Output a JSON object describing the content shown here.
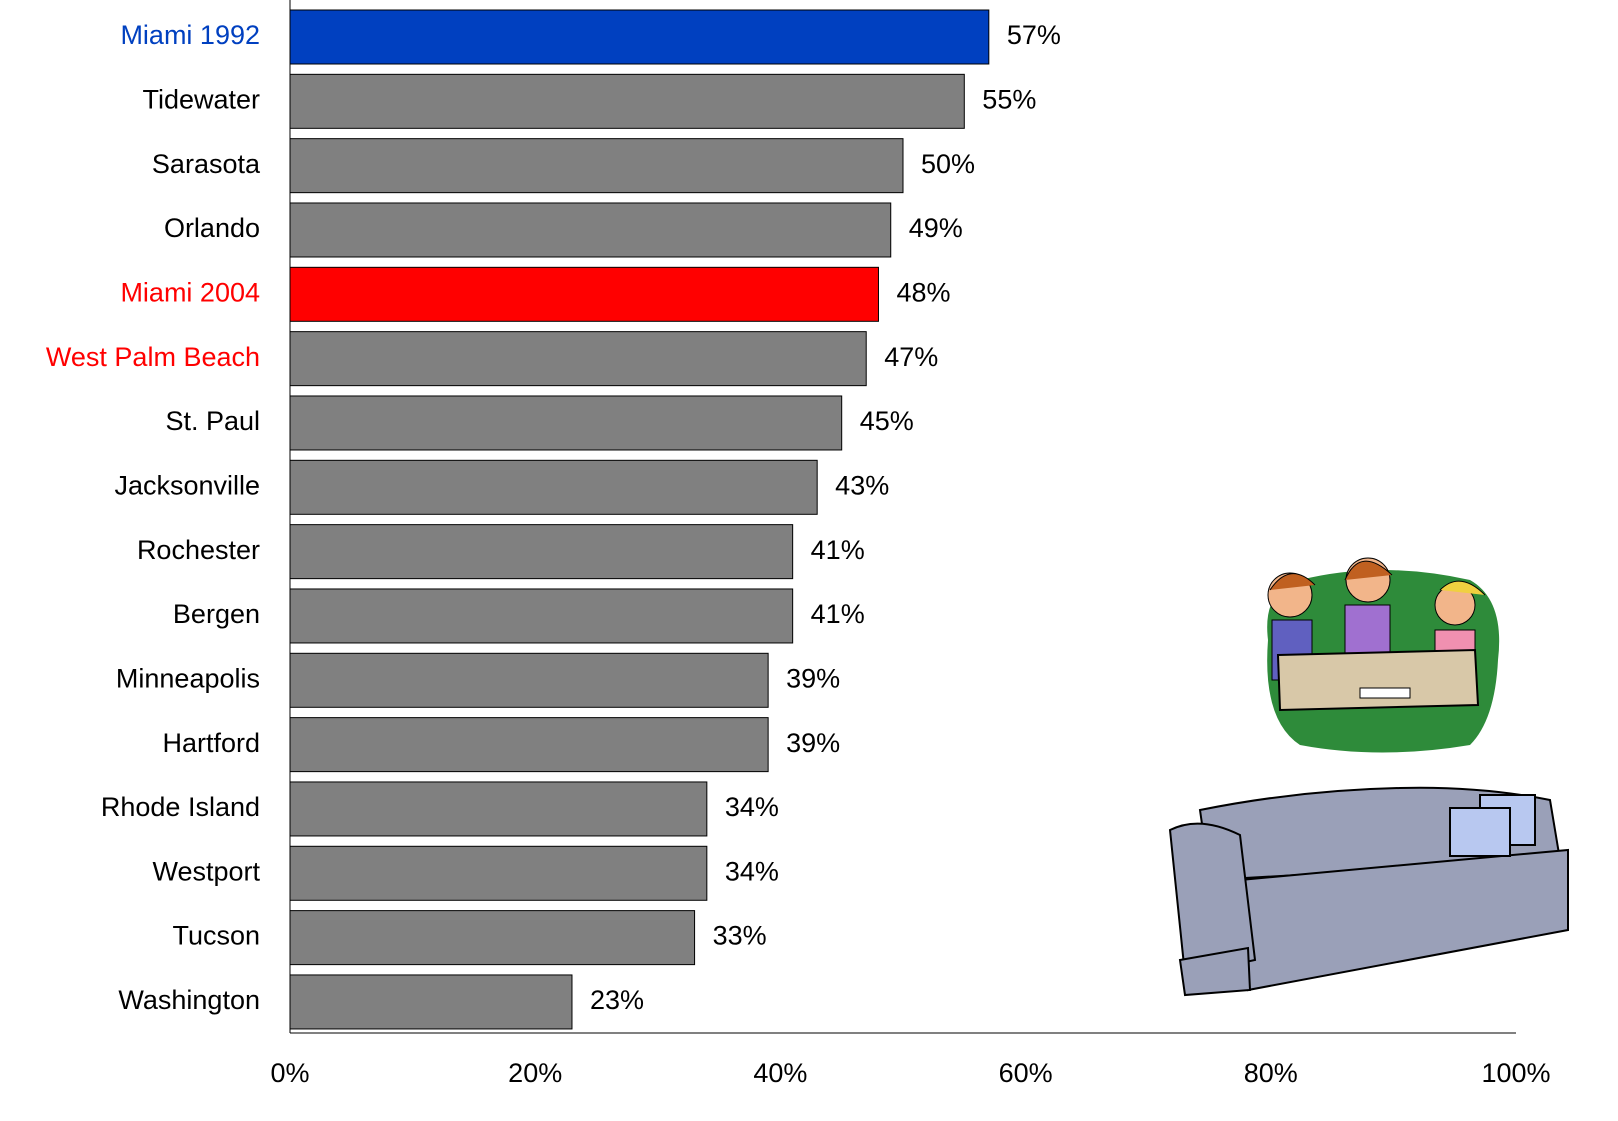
{
  "chart_data": {
    "type": "hbar",
    "categories": [
      "Miami 1992",
      "Tidewater",
      "Sarasota",
      "Orlando",
      "Miami 2004",
      "West Palm Beach",
      "St. Paul",
      "Jacksonville",
      "Rochester",
      "Bergen",
      "Minneapolis",
      "Hartford",
      "Rhode Island",
      "Westport",
      "Tucson",
      "Washington"
    ],
    "values": [
      57,
      55,
      50,
      49,
      48,
      47,
      45,
      43,
      41,
      41,
      39,
      39,
      34,
      34,
      33,
      23
    ],
    "value_labels": [
      "57%",
      "55%",
      "50%",
      "49%",
      "48%",
      "47%",
      "45%",
      "43%",
      "41%",
      "41%",
      "39%",
      "39%",
      "34%",
      "34%",
      "33%",
      "23%"
    ],
    "colors": [
      "#0040c0",
      "#808080",
      "#808080",
      "#808080",
      "#ff0000",
      "#808080",
      "#808080",
      "#808080",
      "#808080",
      "#808080",
      "#808080",
      "#808080",
      "#808080",
      "#808080",
      "#808080",
      "#808080"
    ],
    "label_colors": [
      "#0040c0",
      "#000000",
      "#000000",
      "#000000",
      "#ff0000",
      "#ff0000",
      "#000000",
      "#000000",
      "#000000",
      "#000000",
      "#000000",
      "#000000",
      "#000000",
      "#000000",
      "#000000",
      "#000000"
    ],
    "xlim": [
      0,
      100
    ],
    "xticks": [
      {
        "value": 0,
        "label": "0%"
      },
      {
        "value": 20,
        "label": "20%"
      },
      {
        "value": 40,
        "label": "40%"
      },
      {
        "value": 60,
        "label": "60%"
      },
      {
        "value": 80,
        "label": "80%"
      },
      {
        "value": 100,
        "label": "100%"
      }
    ],
    "grid": false
  }
}
